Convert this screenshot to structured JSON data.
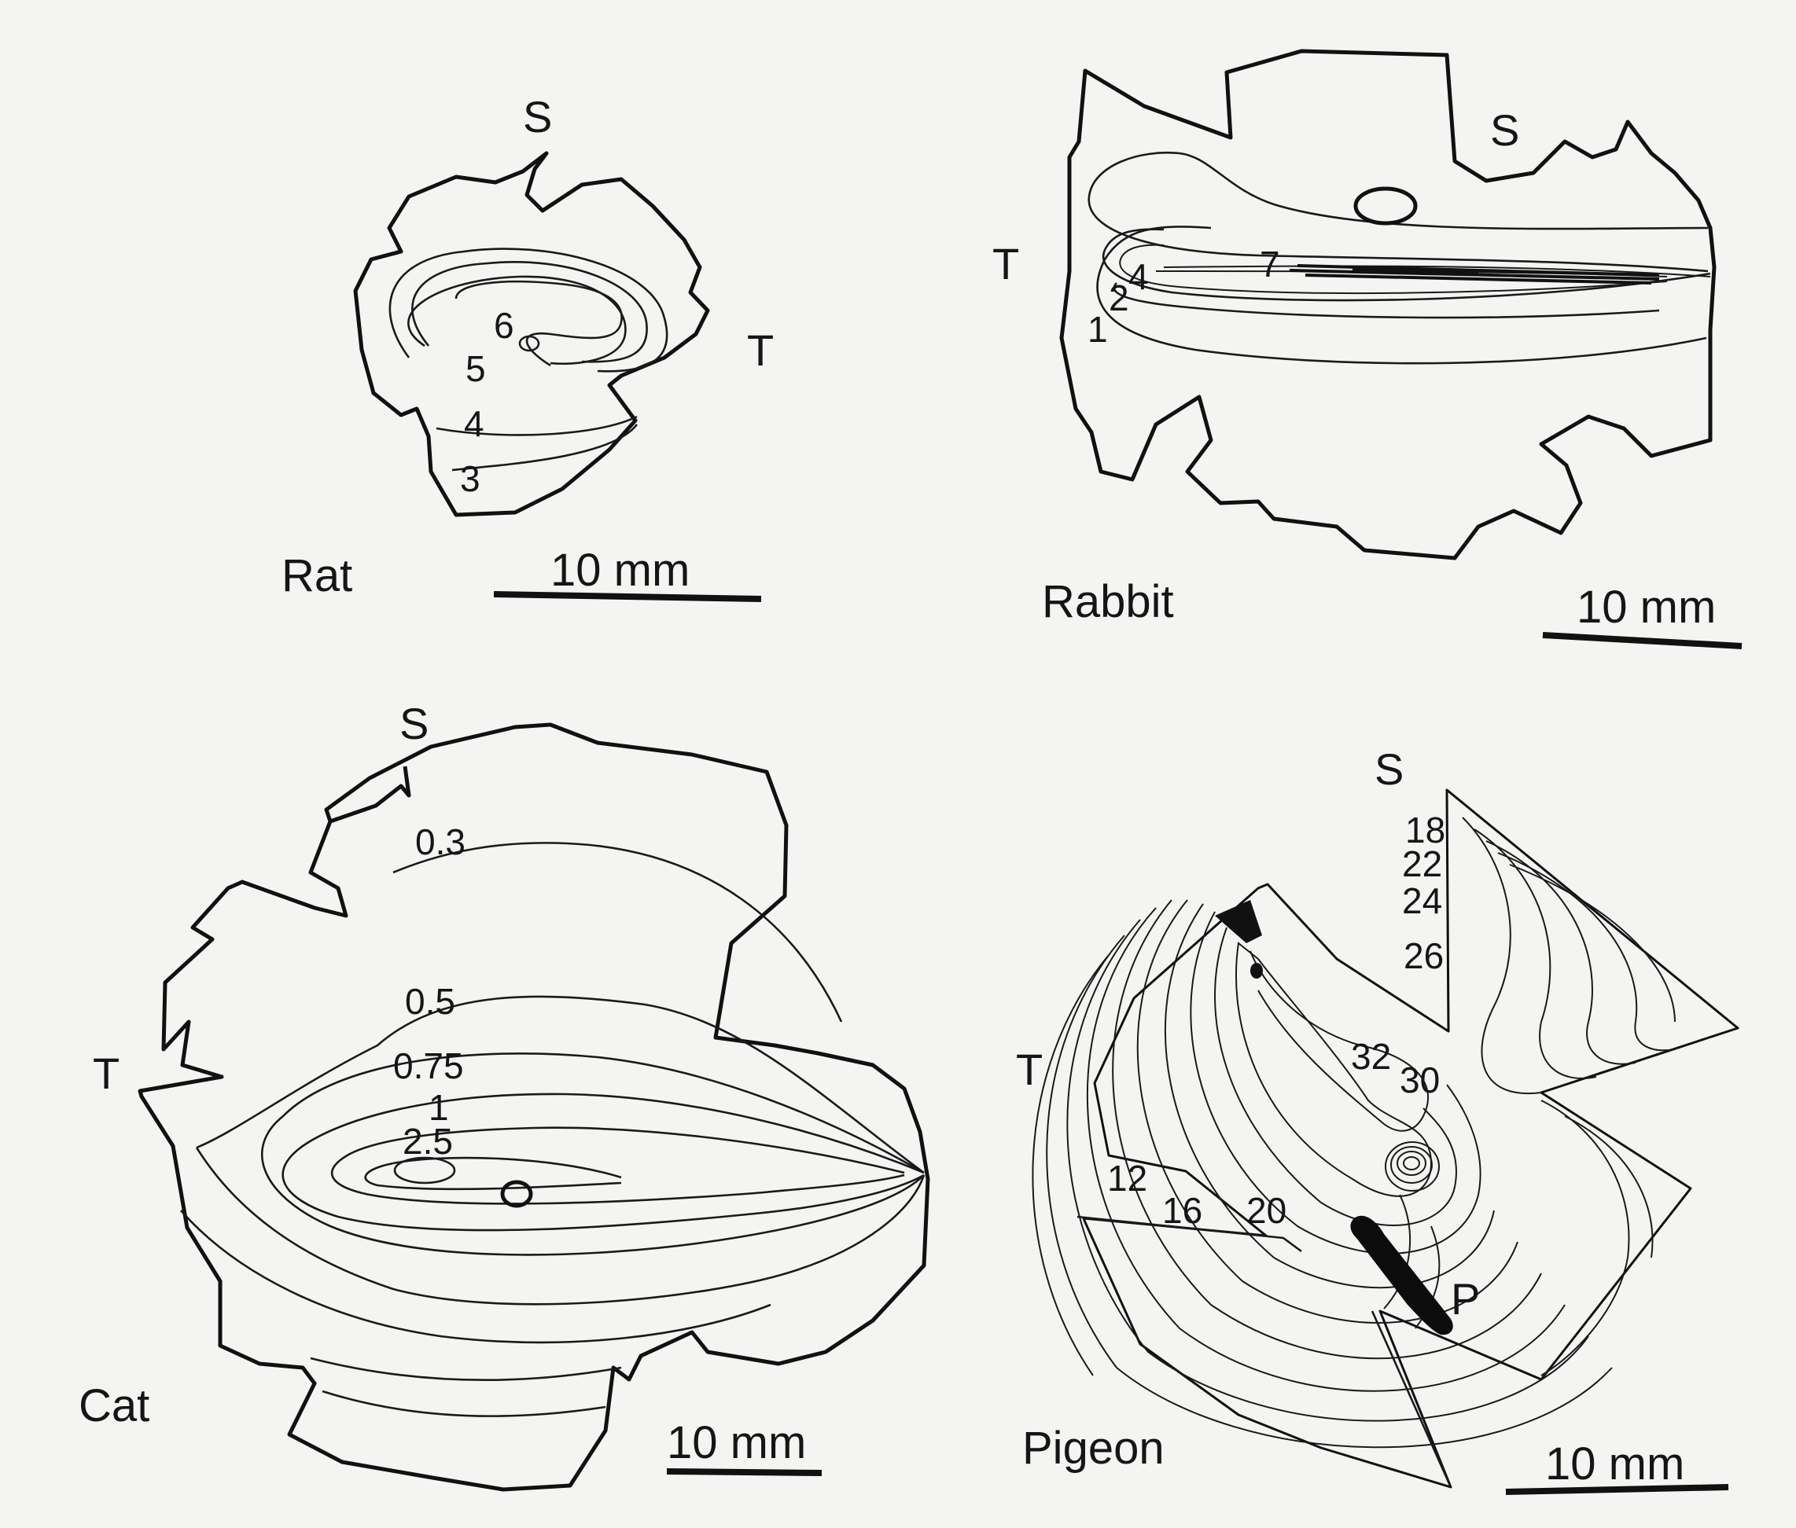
{
  "panels": {
    "rat": {
      "name": "Rat",
      "orientation": {
        "superior": "S",
        "temporal": "T"
      },
      "scale_bar": "10 mm",
      "contour_labels": [
        "6",
        "5",
        "4",
        "3"
      ]
    },
    "rabbit": {
      "name": "Rabbit",
      "orientation": {
        "superior": "S",
        "temporal": "T"
      },
      "scale_bar": "10 mm",
      "contour_labels": [
        "7",
        "4",
        "2",
        "1"
      ]
    },
    "cat": {
      "name": "Cat",
      "orientation": {
        "superior": "S",
        "temporal": "T"
      },
      "scale_bar": "10 mm",
      "contour_labels": [
        "0.3",
        "0.5",
        "0.75",
        "1",
        "2.5"
      ]
    },
    "pigeon": {
      "name": "Pigeon",
      "orientation": {
        "superior": "S",
        "temporal": "T"
      },
      "marker": "P",
      "scale_bar": "10 mm",
      "contour_labels": [
        "18",
        "22",
        "24",
        "26",
        "32",
        "30",
        "12",
        "16",
        "20"
      ]
    }
  }
}
